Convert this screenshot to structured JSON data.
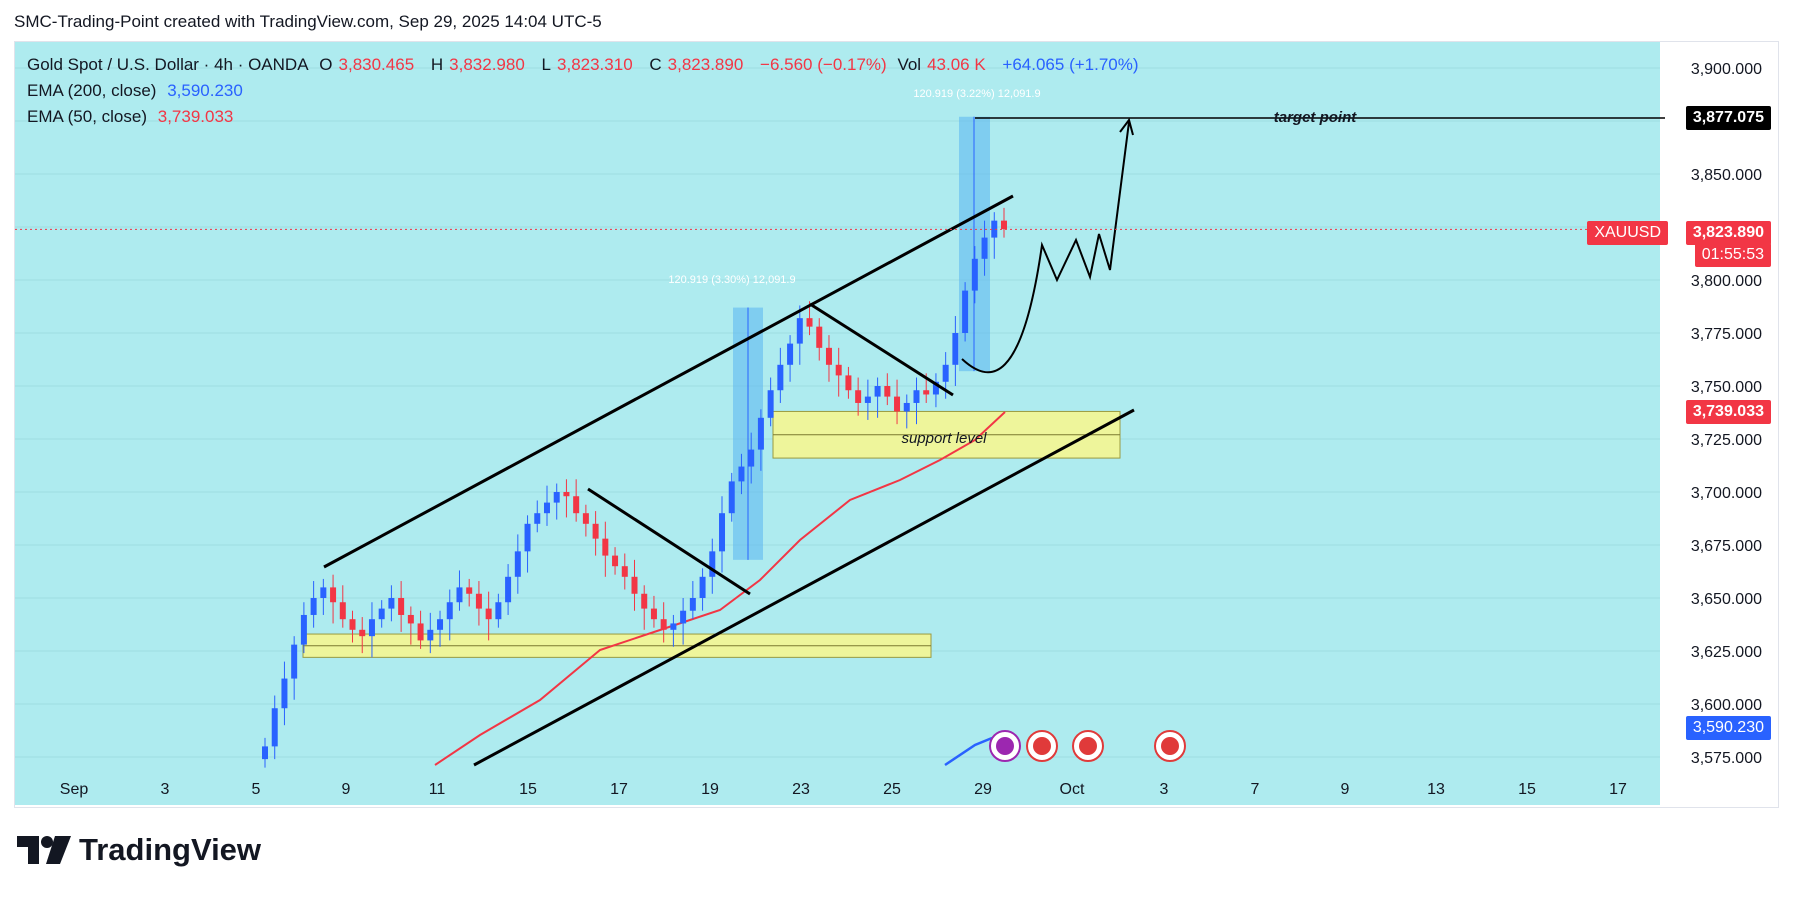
{
  "header": {
    "caption": "SMC-Trading-Point created with TradingView.com, Sep 29, 2025 14:04 UTC-5"
  },
  "legend": {
    "symbol": "Gold Spot / U.S. Dollar · 4h · OANDA",
    "open_label": "O",
    "open": "3,830.465",
    "high_label": "H",
    "high": "3,832.980",
    "low_label": "L",
    "low": "3,823.310",
    "close_label": "C",
    "close": "3,823.890",
    "change": "−6.560 (−0.17%)",
    "vol_label": "Vol",
    "vol": "43.06 K",
    "vol_change": "+64.065 (+1.70%)",
    "ema200_label": "EMA (200, close)",
    "ema200": "3,590.230",
    "ema50_label": "EMA (50, close)",
    "ema50": "3,739.033"
  },
  "labels": {
    "target_point": "target point",
    "support_level": "support  level",
    "measure_1": "120.919 (3.30%) 12,091.9",
    "measure_2": "120.919 (3.22%) 12,091.9"
  },
  "price_tags": {
    "target": "3,877.075",
    "symbol": "XAUUSD",
    "last_price": "3,823.890",
    "countdown": "01:55:53",
    "ema50": "3,739.033",
    "ema200": "3,590.230"
  },
  "footer": {
    "brand": "TradingView"
  },
  "colors": {
    "background": "#aeebef",
    "up": "#2962ff",
    "down": "#f23645",
    "ema50": "#f23645",
    "ema200": "#2962ff",
    "zone": "#eef59b"
  },
  "chart_data": {
    "type": "candlestick",
    "y_axis": {
      "ticks": [
        "3,900.000",
        "3,875.000",
        "3,850.000",
        "3,825.000",
        "3,800.000",
        "3,775.000",
        "3,750.000",
        "3,725.000",
        "3,700.000",
        "3,675.000",
        "3,650.000",
        "3,625.000",
        "3,600.000",
        "3,575.000"
      ],
      "tick_values": [
        3900,
        3875,
        3850,
        3825,
        3800,
        3775,
        3750,
        3725,
        3700,
        3675,
        3650,
        3625,
        3600,
        3575
      ],
      "range": [
        3572,
        3912
      ]
    },
    "x_axis": {
      "ticks": [
        "Sep",
        "3",
        "5",
        "9",
        "11",
        "15",
        "17",
        "19",
        "23",
        "25",
        "29",
        "Oct",
        "3",
        "7",
        "9",
        "13",
        "15",
        "17"
      ]
    },
    "last_price": 3823.89,
    "target_price": 3877.075,
    "ema50_last": 3739.033,
    "ema200_last": 3590.23,
    "support_zone": [
      3716,
      3738
    ],
    "lower_zone": [
      3622,
      3633
    ],
    "candle_closes_approx": [
      3580,
      3598,
      3612,
      3628,
      3642,
      3650,
      3655,
      3648,
      3640,
      3635,
      3632,
      3640,
      3645,
      3650,
      3642,
      3638,
      3630,
      3635,
      3640,
      3648,
      3655,
      3652,
      3645,
      3640,
      3648,
      3660,
      3672,
      3685,
      3690,
      3695,
      3700,
      3698,
      3690,
      3685,
      3678,
      3670,
      3665,
      3660,
      3652,
      3645,
      3640,
      3635,
      3638,
      3644,
      3650,
      3660,
      3672,
      3690,
      3705,
      3712,
      3720,
      3735,
      3748,
      3760,
      3770,
      3782,
      3778,
      3768,
      3760,
      3755,
      3748,
      3742,
      3745,
      3750,
      3745,
      3738,
      3742,
      3748,
      3746,
      3752,
      3760,
      3775,
      3795,
      3810,
      3820,
      3828,
      3824
    ]
  }
}
